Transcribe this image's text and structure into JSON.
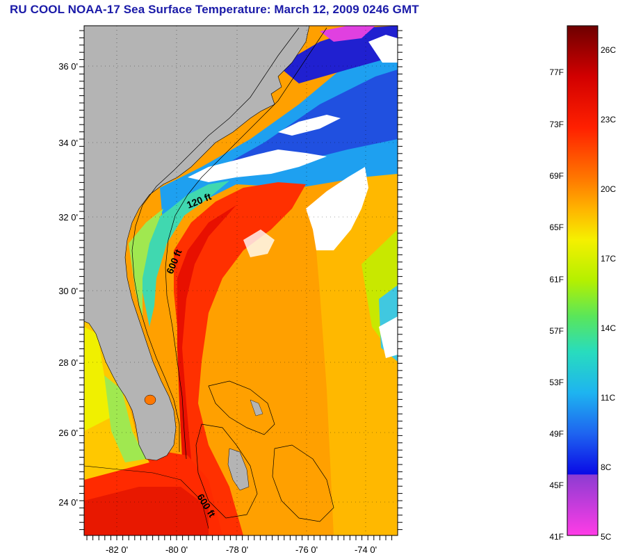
{
  "title": "RU COOL  NOAA-17  Sea Surface Temperature:  March 12, 2009 0246 GMT",
  "map": {
    "lat_labels": [
      "36 0'",
      "34 0'",
      "32 0'",
      "30 0'",
      "28 0'",
      "26 0'",
      "24 0'"
    ],
    "lon_labels": [
      "-82 0'",
      "-80 0'",
      "-78 0'",
      "-76 0'",
      "-74 0'"
    ],
    "contour_labels": [
      "120 ft",
      "600 ft",
      "600 ft"
    ],
    "colors": {
      "land": "#b4b4b4",
      "cloud": "#ffffff",
      "frame": "#000000"
    }
  },
  "colorbar": {
    "fahrenheit_labels": [
      "77F",
      "73F",
      "69F",
      "65F",
      "61F",
      "57F",
      "53F",
      "49F",
      "45F",
      "41F"
    ],
    "celsius_labels": [
      "26C",
      "23C",
      "20C",
      "17C",
      "14C",
      "11C",
      "8C",
      "5C"
    ],
    "colors": [
      "#6e0000",
      "#d20000",
      "#ff2a00",
      "#ff7800",
      "#ffbe00",
      "#f0f000",
      "#b4f000",
      "#64e664",
      "#28dcbe",
      "#1eb4f0",
      "#1e64f0",
      "#0a0ae6",
      "#9632d2",
      "#ff3cdc"
    ]
  }
}
